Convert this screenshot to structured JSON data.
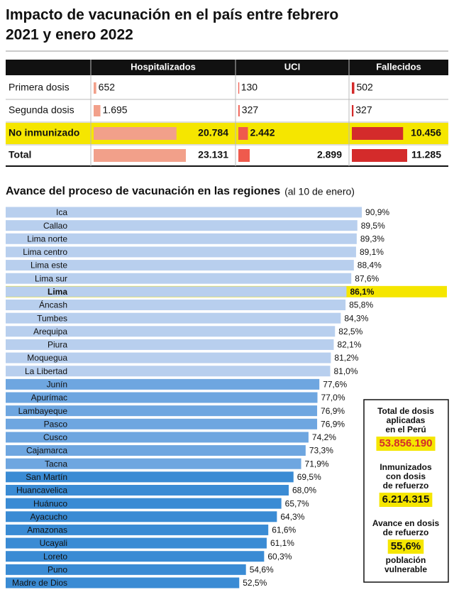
{
  "title": [
    "Impacto de vacunación en el país entre febrero",
    "2021 y enero 2022"
  ],
  "table": {
    "columns": [
      "Hospitalizados",
      "UCI",
      "Fallecidos"
    ],
    "colors": [
      "#f2a08a",
      "#ef5a4d",
      "#d42b2b"
    ],
    "highlight_row": 2,
    "highlight_color": "#f5e600",
    "bold_row": 3,
    "rows": [
      {
        "label": "Primera dosis",
        "values": [
          652,
          130,
          502
        ],
        "value_labels": [
          "652",
          "130",
          "502"
        ]
      },
      {
        "label": "Segunda dosis",
        "values": [
          1695,
          327,
          327
        ],
        "value_labels": [
          "1.695",
          "327",
          "327"
        ]
      },
      {
        "label": "No inmunizado",
        "values": [
          20784,
          2442,
          10456
        ],
        "value_labels": [
          "20.784",
          "2.442",
          "10.456"
        ]
      },
      {
        "label": "Total",
        "values": [
          23131,
          2899,
          11285
        ],
        "value_labels": [
          "23.131",
          "2.899",
          "11.285"
        ]
      }
    ]
  },
  "chart_data": {
    "type": "hbar",
    "title": "Avance del proceso de vacunación en las regiones",
    "subtitle": "(al 10 de enero)",
    "categories": [
      "Ica",
      "Callao",
      "Lima norte",
      "Lima centro",
      "Lima este",
      "Lima sur",
      "Lima",
      "Áncash",
      "Tumbes",
      "Arequipa",
      "Piura",
      "Moquegua",
      "La Libertad",
      "Junín",
      "Apurímac",
      "Lambayeque",
      "Pasco",
      "Cusco",
      "Cajamarca",
      "Tacna",
      "San Martín",
      "Huancavelica",
      "Huánuco",
      "Ayacucho",
      "Amazonas",
      "Ucayali",
      "Loreto",
      "Puno",
      "Madre de Dios"
    ],
    "values": [
      90.9,
      89.5,
      89.3,
      89.1,
      88.4,
      87.6,
      86.1,
      85.8,
      84.3,
      82.5,
      82.1,
      81.2,
      81.0,
      77.6,
      77.0,
      76.9,
      76.9,
      74.2,
      73.3,
      71.9,
      69.5,
      68.0,
      65.7,
      64.3,
      61.6,
      61.1,
      60.3,
      54.6,
      52.5
    ],
    "value_labels": [
      "90,9%",
      "89,5%",
      "89,3%",
      "89,1%",
      "88,4%",
      "87,6%",
      "86,1%",
      "85,8%",
      "84,3%",
      "82,5%",
      "82,1%",
      "81,2%",
      "81,0%",
      "77,6%",
      "77,0%",
      "76,9%",
      "76,9%",
      "74,2%",
      "73,3%",
      "71,9%",
      "69,5%",
      "68,0%",
      "65,7%",
      "64,3%",
      "61,6%",
      "61,1%",
      "60,3%",
      "54,6%",
      "52,5%"
    ],
    "colors": [
      "#b8cfee",
      "#b8cfee",
      "#b8cfee",
      "#b8cfee",
      "#b8cfee",
      "#b8cfee",
      "#b8cfee",
      "#b8cfee",
      "#b8cfee",
      "#b8cfee",
      "#b8cfee",
      "#b8cfee",
      "#b8cfee",
      "#6ea6e0",
      "#6ea6e0",
      "#6ea6e0",
      "#6ea6e0",
      "#6ea6e0",
      "#6ea6e0",
      "#6ea6e0",
      "#3a8bd4",
      "#3a8bd4",
      "#3a8bd4",
      "#3a8bd4",
      "#3a8bd4",
      "#3a8bd4",
      "#3a8bd4",
      "#3a8bd4",
      "#3a8bd4"
    ],
    "highlight": 6,
    "highlight_color": "#f5e600"
  },
  "summary": [
    {
      "label": [
        "Total de dosis",
        "aplicadas",
        "en el Perú"
      ],
      "value": "53.856.190",
      "value_color": "#d42b2b"
    },
    {
      "label": [
        "Inmunizados",
        "con dosis",
        "de refuerzo"
      ],
      "value": "6.214.315",
      "value_color": "#111"
    },
    {
      "label": [
        "Avance en dosis",
        "de refuerzo"
      ],
      "value": "55,6%",
      "value_color": "#111",
      "note": [
        "población",
        "vulnerable"
      ]
    }
  ]
}
